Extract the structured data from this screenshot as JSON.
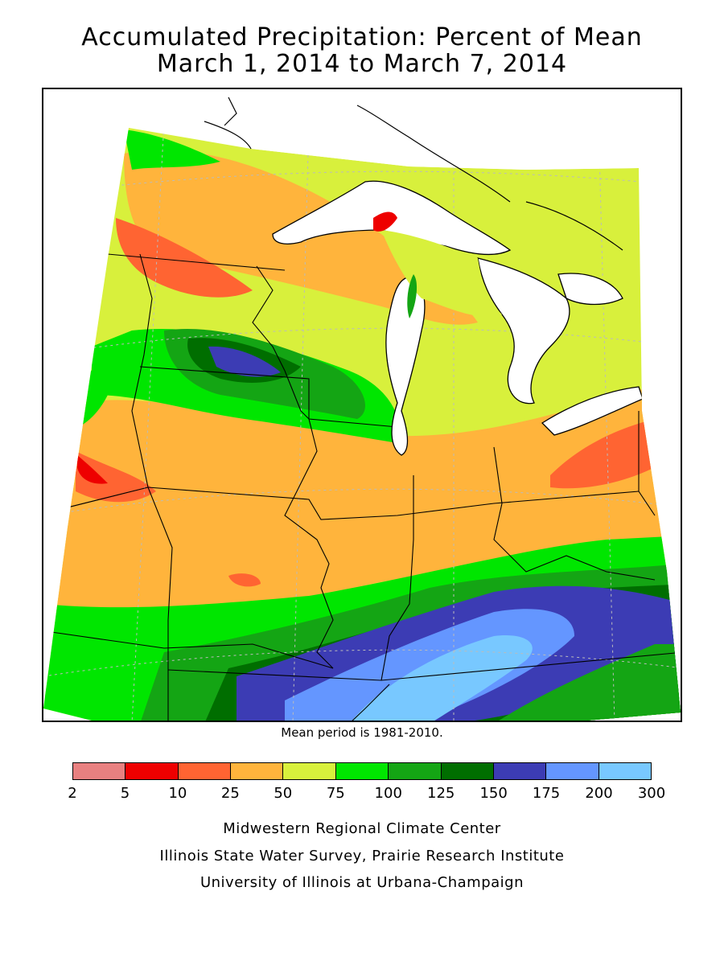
{
  "title_line1": "Accumulated Precipitation: Percent of Mean",
  "title_line2": "March 1, 2014 to March 7, 2014",
  "mean_note": "Mean period is 1981-2010.",
  "legend": {
    "breaks": [
      "2",
      "5",
      "10",
      "25",
      "50",
      "75",
      "100",
      "125",
      "150",
      "175",
      "200",
      "300"
    ],
    "colors": [
      "#e88080",
      "#ee0000",
      "#ff6432",
      "#ffb43c",
      "#d8f03c",
      "#00e600",
      "#14a514",
      "#006e00",
      "#3c3cb4",
      "#6496ff",
      "#78c8ff"
    ]
  },
  "credits": [
    "Midwestern Regional Climate Center",
    "Illinois State Water Survey, Prairie Research Institute",
    "University of Illinois at Urbana-Champaign"
  ],
  "map_palette": {
    "lake": "#ffffff",
    "outside": "#ffffff",
    "border": "#000000"
  }
}
